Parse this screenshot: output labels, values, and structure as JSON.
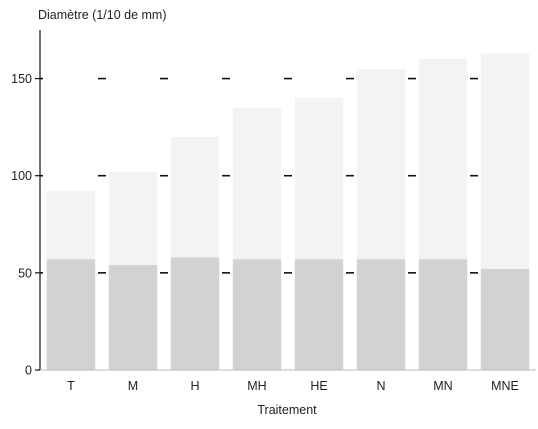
{
  "chart_data": {
    "type": "bar",
    "ylabel": "Diamètre (1/10 de mm)",
    "xlabel": "Traitement",
    "categories": [
      "T",
      "M",
      "H",
      "MH",
      "HE",
      "N",
      "MN",
      "MNE"
    ],
    "series": [
      {
        "values": [
          92,
          102,
          120,
          135,
          140,
          155,
          160,
          163
        ],
        "color": "#f3f3f3"
      },
      {
        "values": [
          57,
          54,
          58,
          57,
          57,
          57,
          57,
          52
        ],
        "color": "#d2d2d2"
      }
    ],
    "yticks": [
      0,
      50,
      100,
      150
    ],
    "ylim": [
      0,
      175
    ],
    "reference_lines": [
      50,
      100,
      150
    ],
    "grid": false
  }
}
